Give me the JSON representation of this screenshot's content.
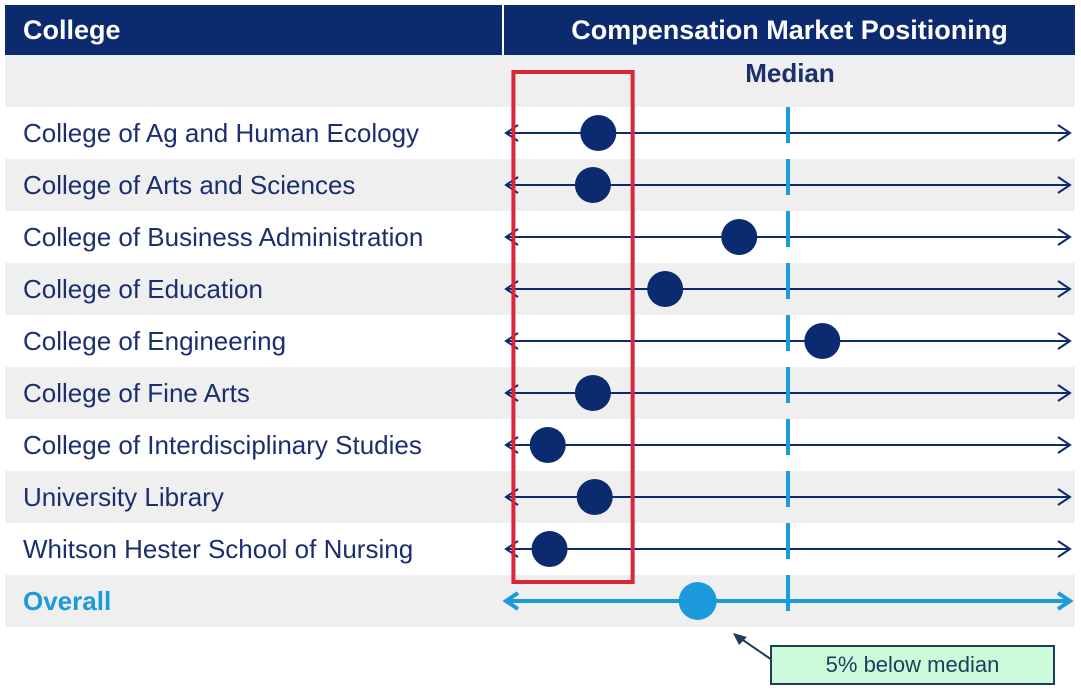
{
  "header": {
    "college": "College",
    "positioning": "Compensation Market Positioning"
  },
  "chart_data": {
    "type": "dot-plot",
    "reference_label": "Median",
    "reference_value": 0,
    "xlim": [
      -15.5,
      15.5
    ],
    "unit": "% relative to market median",
    "categories": [
      "College of Ag and Human Ecology",
      "College of Arts and Sciences",
      "College of Business Administration",
      "College of Education",
      "College of Engineering",
      "College of Fine Arts",
      "College of Interdisciplinary Studies",
      "University Library",
      "Whitson Hester School of Nursing"
    ],
    "values": [
      -10.5,
      -10.8,
      -2.7,
      -6.8,
      1.9,
      -10.8,
      -13.3,
      -10.7,
      -13.2
    ],
    "overall": {
      "label": "Overall",
      "value": -5
    },
    "highlight_range": [
      -15.2,
      -8.6
    ],
    "annotation": "5% below median",
    "colors": {
      "header": "#0b2a6f",
      "dot": "#0b2a6f",
      "overall": "#1b9bdc",
      "median": "#1b9bdc",
      "highlight": "#d9263a",
      "callout_bg": "#ccfbd9"
    }
  }
}
